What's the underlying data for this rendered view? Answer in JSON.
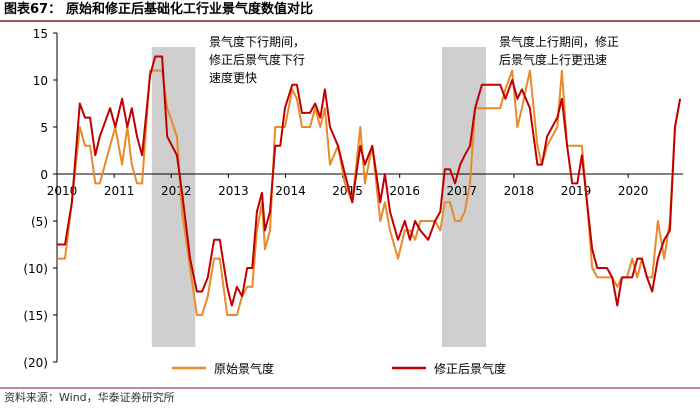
{
  "header": {
    "label": "图表67：",
    "title": "原始和修正后基础化工行业景气度数值对比"
  },
  "chart_data": {
    "type": "line",
    "x": [
      2010.0,
      2010.14,
      2010.26,
      2010.4,
      2010.49,
      2010.58,
      2010.67,
      2010.75,
      2010.93,
      2011.02,
      2011.14,
      2011.23,
      2011.31,
      2011.4,
      2011.49,
      2011.63,
      2011.72,
      2011.84,
      2011.93,
      2012.1,
      2012.19,
      2012.33,
      2012.45,
      2012.54,
      2012.64,
      2012.75,
      2012.85,
      2012.98,
      2013.06,
      2013.15,
      2013.24,
      2013.33,
      2013.42,
      2013.5,
      2013.59,
      2013.64,
      2013.73,
      2013.82,
      2013.91,
      2013.99,
      2014.12,
      2014.2,
      2014.29,
      2014.43,
      2014.52,
      2014.61,
      2014.69,
      2014.78,
      2014.92,
      2015.04,
      2015.17,
      2015.31,
      2015.39,
      2015.52,
      2015.66,
      2015.74,
      2015.83,
      2015.97,
      2016.09,
      2016.18,
      2016.27,
      2016.36,
      2016.5,
      2016.62,
      2016.71,
      2016.79,
      2016.88,
      2016.97,
      2017.06,
      2017.14,
      2017.23,
      2017.32,
      2017.44,
      2017.58,
      2017.76,
      2017.85,
      2017.97,
      2018.06,
      2018.14,
      2018.28,
      2018.41,
      2018.49,
      2018.58,
      2018.76,
      2018.84,
      2018.93,
      2019.02,
      2019.11,
      2019.19,
      2019.28,
      2019.37,
      2019.46,
      2019.54,
      2019.63,
      2019.72,
      2019.81,
      2019.89,
      2019.98,
      2020.07,
      2020.16,
      2020.24,
      2020.33,
      2020.42,
      2020.52,
      2020.63,
      2020.73,
      2020.82,
      2020.91
    ],
    "series": [
      {
        "name": "原始景气度",
        "color": "#e8892b",
        "values": [
          -9,
          -9,
          -3,
          5,
          3,
          3,
          -1,
          -1,
          3,
          5,
          1,
          5,
          1,
          -1,
          -1,
          11,
          11,
          11,
          7,
          4,
          -4,
          -10,
          -15,
          -15,
          -13,
          -9,
          -9,
          -15,
          -15,
          -15,
          -13,
          -12,
          -12,
          -6,
          -3,
          -8,
          -6,
          5,
          5,
          5,
          9,
          8,
          5,
          5,
          7,
          5,
          7,
          1,
          3,
          -1,
          -3,
          5,
          -1,
          3,
          -5,
          -3,
          -6,
          -9,
          -6,
          -6,
          -7,
          -5,
          -5,
          -5,
          -6,
          -3,
          -3,
          -5,
          -5,
          -4,
          -1,
          7,
          7,
          7,
          7,
          9,
          11,
          5,
          7,
          11,
          3,
          1,
          3,
          5,
          11,
          3,
          3,
          3,
          3,
          -3,
          -10,
          -11,
          -11,
          -11,
          -11,
          -12,
          -11,
          -11,
          -9,
          -11,
          -9,
          -11,
          -11,
          -5,
          -9,
          -5,
          5,
          8
        ]
      },
      {
        "name": "修正后景气度",
        "color": "#c00000",
        "values": [
          -7.5,
          -7.5,
          -3,
          7.5,
          6,
          6,
          2,
          4,
          7,
          5,
          8,
          5,
          7,
          4,
          2,
          10.5,
          12.5,
          12.5,
          4,
          2,
          -2,
          -9,
          -12.5,
          -12.5,
          -11,
          -7,
          -7,
          -12,
          -14,
          -12,
          -13,
          -10,
          -10,
          -4,
          -2,
          -6,
          -4,
          3,
          3,
          7,
          9.5,
          9.5,
          6.5,
          6.5,
          7.5,
          6,
          9,
          5,
          3,
          0,
          -3,
          3,
          1,
          3,
          -3,
          0,
          -4,
          -7,
          -5,
          -7,
          -5,
          -6,
          -7,
          -5,
          -4,
          0.5,
          0.5,
          -1,
          1,
          2,
          3,
          7,
          9.5,
          9.5,
          9.5,
          8,
          10,
          8,
          9,
          7,
          1,
          1,
          4,
          6,
          8,
          3,
          -1,
          -1,
          2,
          -3,
          -8,
          -10,
          -10,
          -10,
          -11,
          -14,
          -11,
          -11,
          -11,
          -9,
          -9,
          -11,
          -12.5,
          -9,
          -7,
          -6,
          5,
          8
        ]
      }
    ],
    "shaded_periods": [
      [
        2011.66,
        2012.42
      ],
      [
        2016.74,
        2017.51
      ]
    ],
    "annotations": [
      {
        "lines": [
          "景气度下行期间，",
          "修正后景气度下行",
          "速度更快"
        ]
      },
      {
        "lines": [
          "景气度上行期间，修正",
          "后景气度上行更迅速"
        ]
      }
    ],
    "xlim": [
      2010,
      2020.96
    ],
    "xticks": [
      2010,
      2011,
      2012,
      2013,
      2014,
      2015,
      2016,
      2017,
      2018,
      2019,
      2020
    ],
    "ylim": [
      -20,
      15
    ],
    "yticks": [
      15,
      10,
      5,
      0,
      {
        "value": -5,
        "label": "(5)"
      },
      {
        "value": -10,
        "label": "(10)"
      },
      {
        "value": -15,
        "label": "(15)"
      },
      {
        "value": -20,
        "label": "(20)"
      }
    ],
    "legend": "bottom"
  },
  "footer": {
    "source": "资料来源：Wind，华泰证券研究所"
  }
}
